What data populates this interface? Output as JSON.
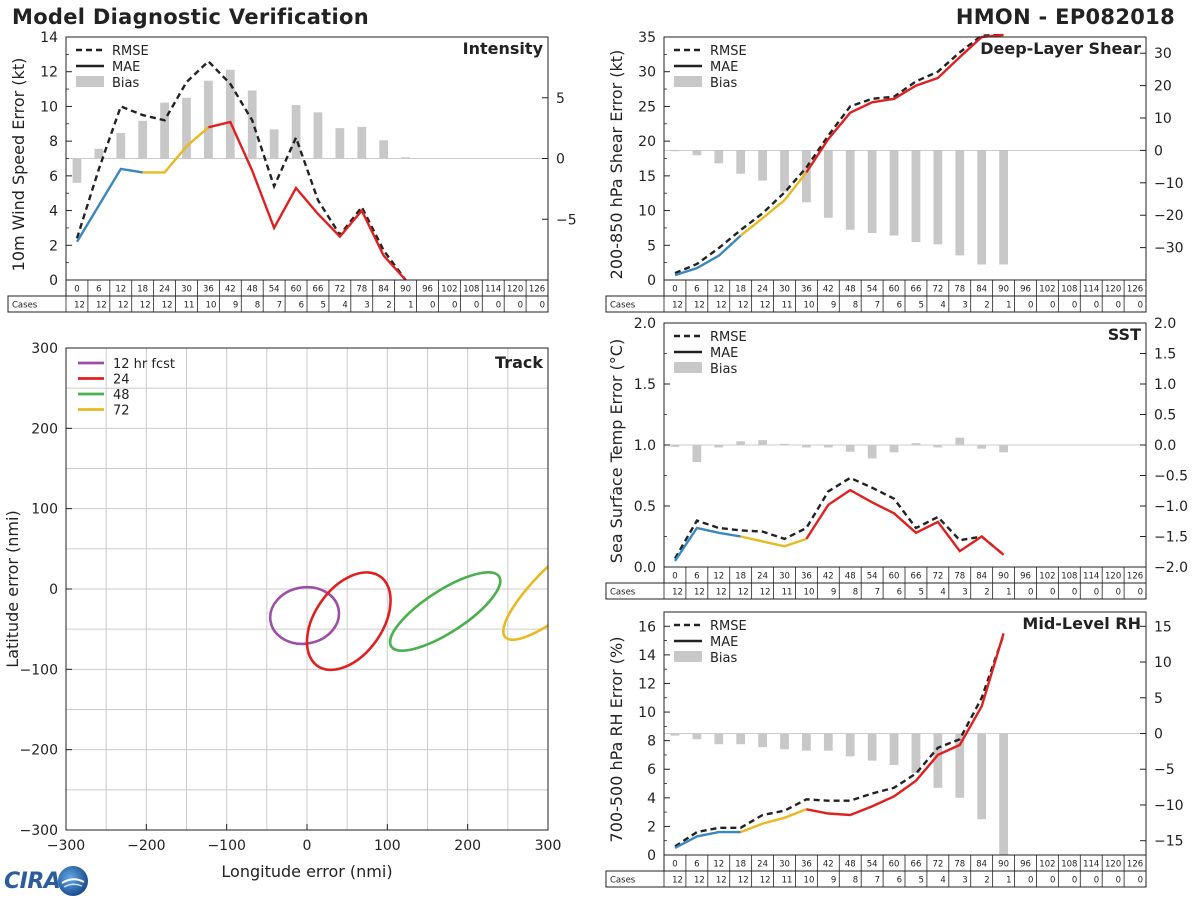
{
  "header": {
    "title": "Model Diagnostic Verification",
    "storm": "HMON - EP082018"
  },
  "logo": {
    "text": "CIRA"
  },
  "colors": {
    "seg_blue": "#3a87c0",
    "seg_yellow": "#e8b920",
    "seg_red": "#e02020",
    "bias": "#c8c8c8",
    "track_12": "#9b4fa6",
    "track_24": "#e02020",
    "track_48": "#4caf50",
    "track_72": "#e8b920"
  },
  "table": {
    "hours": [
      0,
      6,
      12,
      18,
      24,
      30,
      36,
      42,
      48,
      54,
      60,
      66,
      72,
      78,
      84,
      90,
      96,
      102,
      108,
      114,
      120,
      126
    ],
    "cases": [
      12,
      12,
      12,
      12,
      12,
      11,
      10,
      9,
      8,
      7,
      6,
      5,
      4,
      3,
      2,
      1,
      0,
      0,
      0,
      0,
      0,
      0
    ],
    "cases_label": "Cases"
  },
  "chart_data": [
    {
      "id": "intensity",
      "type": "line+bar",
      "title": "Intensity",
      "ylabel": "10m Wind Speed Error (kt)",
      "ylim": [
        0,
        14
      ],
      "yticks": [
        0,
        2,
        4,
        6,
        8,
        10,
        12,
        14
      ],
      "y2lim": [
        -10,
        10
      ],
      "y2ticks": [
        -5,
        0,
        5
      ],
      "legend": [
        "RMSE",
        "MAE",
        "Bias"
      ],
      "rmse": [
        2.4,
        6.4,
        10.0,
        9.5,
        9.2,
        11.4,
        12.6,
        11.3,
        9.2,
        5.4,
        8.2,
        4.6,
        2.6,
        4.2,
        1.7,
        0.0
      ],
      "mae": [
        2.2,
        4.3,
        6.4,
        6.2,
        6.2,
        7.7,
        8.8,
        9.1,
        6.3,
        3.0,
        5.3,
        3.8,
        2.5,
        4.0,
        1.4,
        0.0
      ],
      "bias": [
        -2.0,
        0.8,
        2.1,
        3.1,
        4.6,
        5.0,
        6.4,
        7.3,
        5.6,
        2.4,
        4.4,
        3.8,
        2.5,
        2.6,
        1.5,
        0.1
      ]
    },
    {
      "id": "shear",
      "type": "line+bar",
      "title": "Deep-Layer Shear",
      "ylabel": "200-850 hPa Shear Error (kt)",
      "ylim": [
        0,
        35
      ],
      "yticks": [
        0,
        5,
        10,
        15,
        20,
        25,
        30,
        35
      ],
      "y2lim": [
        -40,
        35
      ],
      "y2ticks": [
        -30,
        -20,
        -10,
        0,
        10,
        20,
        30
      ],
      "legend": [
        "RMSE",
        "MAE",
        "Bias"
      ],
      "rmse": [
        1.0,
        2.3,
        4.6,
        7.2,
        9.6,
        12.6,
        16.2,
        20.8,
        25.0,
        26.1,
        26.4,
        28.6,
        30.0,
        32.8,
        35.2,
        35.3
      ],
      "mae": [
        0.7,
        1.7,
        3.5,
        6.4,
        8.9,
        11.5,
        15.5,
        20.3,
        24.1,
        25.6,
        26.1,
        28.0,
        29.1,
        32.1,
        35.0,
        35.3
      ],
      "bias": [
        -0.2,
        -1.5,
        -4.0,
        -7.2,
        -9.3,
        -12.7,
        -16.0,
        -20.8,
        -24.5,
        -25.5,
        -26.3,
        -28.3,
        -29.0,
        -32.4,
        -35.2,
        -35.2
      ]
    },
    {
      "id": "sst",
      "type": "line+bar",
      "title": "SST",
      "ylabel": "Sea Surface Temp Error (°C)",
      "ylim": [
        0.0,
        2.0
      ],
      "yticks": [
        0.0,
        0.5,
        1.0,
        1.5,
        2.0
      ],
      "y2lim": [
        -2.0,
        2.0
      ],
      "y2ticks": [
        -2.0,
        -1.5,
        -1.0,
        -0.5,
        0.0,
        0.5,
        1.0,
        1.5,
        2.0
      ],
      "legend": [
        "RMSE",
        "MAE",
        "Bias"
      ],
      "rmse": [
        0.07,
        0.38,
        0.32,
        0.3,
        0.29,
        0.23,
        0.32,
        0.62,
        0.73,
        0.65,
        0.56,
        0.32,
        0.41,
        0.22,
        0.25,
        0.1
      ],
      "mae": [
        0.05,
        0.32,
        0.28,
        0.25,
        0.21,
        0.17,
        0.23,
        0.51,
        0.63,
        0.53,
        0.44,
        0.28,
        0.37,
        0.13,
        0.25,
        0.1
      ],
      "bias": [
        -0.03,
        -0.28,
        -0.04,
        0.06,
        0.08,
        0.02,
        -0.04,
        -0.04,
        -0.11,
        -0.22,
        -0.12,
        0.03,
        -0.04,
        0.12,
        -0.06,
        -0.12
      ]
    },
    {
      "id": "rh",
      "type": "line+bar",
      "title": "Mid-Level RH",
      "ylabel": "700-500 hPa RH Error (%)",
      "ylim": [
        0,
        17
      ],
      "yticks": [
        0,
        2,
        4,
        6,
        8,
        10,
        12,
        14,
        16
      ],
      "y2lim": [
        -17,
        17
      ],
      "y2ticks": [
        -15,
        -10,
        -5,
        0,
        5,
        10,
        15
      ],
      "legend": [
        "RMSE",
        "MAE",
        "Bias"
      ],
      "rmse": [
        0.6,
        1.6,
        1.9,
        1.9,
        2.8,
        3.1,
        3.9,
        3.8,
        3.8,
        4.3,
        4.7,
        5.7,
        7.5,
        8.1,
        11.0,
        15.4
      ],
      "mae": [
        0.5,
        1.3,
        1.6,
        1.6,
        2.2,
        2.6,
        3.2,
        2.9,
        2.8,
        3.4,
        4.1,
        5.2,
        7.0,
        7.7,
        10.4,
        15.5
      ],
      "bias": [
        -0.3,
        -0.8,
        -1.5,
        -1.5,
        -1.9,
        -2.2,
        -2.4,
        -2.4,
        -3.2,
        -3.8,
        -4.4,
        -5.5,
        -7.6,
        -9.0,
        -12.0,
        -17.0
      ]
    },
    {
      "id": "track",
      "type": "scatter-ellipses",
      "title": "Track",
      "xlabel": "Longitude error (nmi)",
      "ylabel": "Latitude error (nmi)",
      "xlim": [
        -300,
        300
      ],
      "ylim": [
        -300,
        300
      ],
      "xticks": [
        -300,
        -200,
        -100,
        0,
        100,
        200,
        300
      ],
      "yticks": [
        -300,
        -200,
        -100,
        0,
        100,
        200,
        300
      ],
      "legend": [
        "12 hr fcst",
        "24",
        "48",
        "72"
      ],
      "ellipses": [
        {
          "label": "12 hr fcst",
          "cx": -3,
          "cy": -33,
          "rx": 43,
          "ry": 35,
          "angle": -10
        },
        {
          "label": "24",
          "cx": 52,
          "cy": -40,
          "rx": 68,
          "ry": 42,
          "angle": -55
        },
        {
          "label": "48",
          "cx": 172,
          "cy": -28,
          "rx": 80,
          "ry": 26,
          "angle": -33
        },
        {
          "label": "72",
          "cx": 330,
          "cy": 15,
          "rx": 112,
          "ry": 30,
          "angle": -42
        }
      ]
    }
  ]
}
